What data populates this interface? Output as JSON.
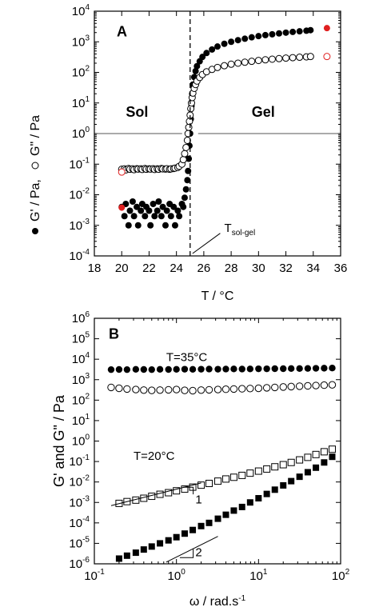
{
  "chart_data": [
    {
      "id": "A",
      "type": "scatter",
      "panel_label": "A",
      "xlabel": "T / °C",
      "ylabel_parts": [
        "G' / Pa,",
        "G\" / Pa"
      ],
      "xlim": [
        18,
        36
      ],
      "ylim_log10": [
        -4,
        4
      ],
      "xticks": [
        18,
        20,
        22,
        24,
        26,
        28,
        30,
        32,
        34,
        36
      ],
      "log_scale_y": true,
      "region_labels": {
        "sol": "Sol",
        "gel": "Gel"
      },
      "annotation": {
        "main": "T",
        "sub": "sol-gel"
      },
      "transition_x": 25,
      "series": [
        {
          "name": "G'",
          "marker": "filled-circle",
          "color": "#000000",
          "x": [
            20.0,
            20.2,
            20.3,
            20.5,
            20.6,
            20.8,
            20.9,
            21.1,
            21.2,
            21.4,
            21.5,
            21.7,
            21.8,
            22.0,
            22.1,
            22.3,
            22.4,
            22.6,
            22.7,
            22.9,
            23.0,
            23.2,
            23.3,
            23.5,
            23.6,
            23.8,
            23.9,
            24.1,
            24.2,
            24.4,
            24.5,
            24.6,
            24.7,
            24.8,
            24.85,
            24.9,
            24.95,
            25.0,
            25.05,
            25.1,
            25.15,
            25.2,
            25.3,
            25.4,
            25.5,
            25.7,
            25.9,
            26.2,
            26.6,
            27.0,
            27.5,
            28.0,
            28.5,
            29.0,
            29.5,
            30.0,
            30.5,
            31.0,
            31.5,
            32.0,
            32.5,
            33.0,
            33.5,
            33.8
          ],
          "y": [
            0.004,
            0.002,
            0.005,
            0.001,
            0.003,
            0.006,
            0.002,
            0.004,
            0.001,
            0.003,
            0.005,
            0.002,
            0.004,
            0.003,
            0.001,
            0.005,
            0.002,
            0.003,
            0.006,
            0.002,
            0.004,
            0.001,
            0.003,
            0.005,
            0.002,
            0.004,
            0.001,
            0.003,
            0.002,
            0.005,
            0.004,
            0.008,
            0.015,
            0.03,
            0.06,
            0.15,
            0.4,
            1.0,
            3.0,
            8.0,
            20,
            40,
            70,
            110,
            160,
            230,
            320,
            430,
            560,
            700,
            860,
            1000,
            1130,
            1260,
            1400,
            1530,
            1650,
            1760,
            1880,
            1990,
            2100,
            2200,
            2300,
            2400
          ]
        },
        {
          "name": "G\"",
          "marker": "open-circle",
          "color": "#000000",
          "x": [
            20.0,
            20.2,
            20.3,
            20.5,
            20.6,
            20.8,
            20.9,
            21.1,
            21.2,
            21.4,
            21.5,
            21.7,
            21.8,
            22.0,
            22.1,
            22.3,
            22.4,
            22.6,
            22.7,
            22.9,
            23.0,
            23.2,
            23.3,
            23.5,
            23.6,
            23.8,
            23.9,
            24.1,
            24.2,
            24.4,
            24.5,
            24.6,
            24.7,
            24.8,
            24.85,
            24.9,
            24.95,
            25.0,
            25.05,
            25.1,
            25.15,
            25.2,
            25.3,
            25.4,
            25.5,
            25.7,
            25.9,
            26.2,
            26.6,
            27.0,
            27.5,
            28.0,
            28.5,
            29.0,
            29.5,
            30.0,
            30.5,
            31.0,
            31.5,
            32.0,
            32.5,
            33.0,
            33.5,
            33.8
          ],
          "y": [
            0.068,
            0.07,
            0.065,
            0.072,
            0.068,
            0.07,
            0.066,
            0.071,
            0.069,
            0.07,
            0.067,
            0.072,
            0.068,
            0.07,
            0.069,
            0.071,
            0.067,
            0.07,
            0.068,
            0.072,
            0.07,
            0.069,
            0.071,
            0.068,
            0.07,
            0.072,
            0.074,
            0.078,
            0.085,
            0.1,
            0.14,
            0.22,
            0.35,
            0.6,
            1.0,
            1.6,
            2.5,
            4.0,
            6.5,
            10,
            15,
            21,
            30,
            40,
            52,
            68,
            85,
            105,
            125,
            145,
            165,
            185,
            200,
            215,
            230,
            245,
            258,
            270,
            282,
            293,
            303,
            313,
            322,
            330
          ]
        },
        {
          "name": "G' (red reference)",
          "marker": "filled-circle",
          "color": "#e02020",
          "x": [
            20.0,
            35.0
          ],
          "y": [
            0.0038,
            2800
          ]
        },
        {
          "name": "G\" (red reference)",
          "marker": "open-circle",
          "color": "#e02020",
          "x": [
            20.0,
            35.0
          ],
          "y": [
            0.055,
            330
          ]
        }
      ]
    },
    {
      "id": "B",
      "type": "scatter",
      "panel_label": "B",
      "xlabel": "ω / rad.s",
      "xlabel_sup": "-1",
      "ylabel": "G' and G\" / Pa",
      "xlim_log10": [
        -1,
        2
      ],
      "ylim_log10": [
        -6,
        6
      ],
      "log_scale_x": true,
      "log_scale_y": true,
      "annotations": {
        "t35": "T=35°C",
        "t20": "T=20°C",
        "slope1": "1",
        "slope2": "2"
      },
      "series": [
        {
          "name": "G' 35°C",
          "marker": "filled-circle",
          "color": "#000000",
          "x": [
            0.16,
            0.2,
            0.25,
            0.32,
            0.4,
            0.5,
            0.63,
            0.8,
            1.0,
            1.26,
            1.58,
            2.0,
            2.5,
            3.2,
            4.0,
            5.0,
            6.3,
            7.9,
            10,
            12.6,
            15.8,
            20,
            25,
            31.6,
            39.8,
            50,
            63,
            79
          ],
          "y": [
            3100,
            3150,
            3100,
            3200,
            3150,
            3100,
            3200,
            3150,
            3200,
            3250,
            3200,
            3250,
            3300,
            3250,
            3300,
            3350,
            3300,
            3350,
            3400,
            3400,
            3450,
            3450,
            3500,
            3500,
            3550,
            3600,
            3650,
            3700
          ]
        },
        {
          "name": "G\" 35°C",
          "marker": "open-circle",
          "color": "#000000",
          "x": [
            0.16,
            0.2,
            0.25,
            0.32,
            0.4,
            0.5,
            0.63,
            0.8,
            1.0,
            1.26,
            1.58,
            2.0,
            2.5,
            3.2,
            4.0,
            5.0,
            6.3,
            7.9,
            10,
            12.6,
            15.8,
            20,
            25,
            31.6,
            39.8,
            50,
            63,
            79
          ],
          "y": [
            420,
            380,
            350,
            330,
            310,
            300,
            310,
            320,
            330,
            300,
            290,
            310,
            320,
            330,
            340,
            350,
            360,
            370,
            380,
            400,
            420,
            440,
            460,
            480,
            500,
            520,
            540,
            560
          ]
        },
        {
          "name": "G\" 20°C",
          "marker": "open-square",
          "color": "#000000",
          "x": [
            0.2,
            0.25,
            0.32,
            0.4,
            0.5,
            0.63,
            0.8,
            1.0,
            1.26,
            1.58,
            2.0,
            2.5,
            3.2,
            4.0,
            5.0,
            6.3,
            7.9,
            10,
            12.6,
            15.8,
            20,
            25,
            31.6,
            39.8,
            50,
            63,
            79
          ],
          "y": [
            0.0009,
            0.0011,
            0.0013,
            0.0016,
            0.002,
            0.0025,
            0.003,
            0.0037,
            0.0045,
            0.0056,
            0.007,
            0.0085,
            0.011,
            0.014,
            0.017,
            0.021,
            0.027,
            0.034,
            0.043,
            0.055,
            0.07,
            0.09,
            0.12,
            0.16,
            0.22,
            0.3,
            0.4
          ]
        },
        {
          "name": "G' 20°C",
          "marker": "filled-square",
          "color": "#000000",
          "x": [
            0.2,
            0.25,
            0.32,
            0.4,
            0.5,
            0.63,
            0.8,
            1.0,
            1.26,
            1.58,
            2.0,
            2.5,
            3.2,
            4.0,
            5.0,
            6.3,
            7.9,
            10,
            12.6,
            15.8,
            20,
            25,
            31.6,
            39.8,
            50,
            63,
            79
          ],
          "y": [
            1.8e-06,
            2.5e-06,
            3.5e-06,
            5e-06,
            7e-06,
            1e-05,
            1.4e-05,
            2e-05,
            3e-05,
            4.5e-05,
            7e-05,
            0.0001,
            0.00016,
            0.00025,
            0.0004,
            0.0006,
            0.001,
            0.0016,
            0.0026,
            0.0042,
            0.0068,
            0.011,
            0.018,
            0.03,
            0.05,
            0.09,
            0.17
          ]
        }
      ]
    }
  ]
}
